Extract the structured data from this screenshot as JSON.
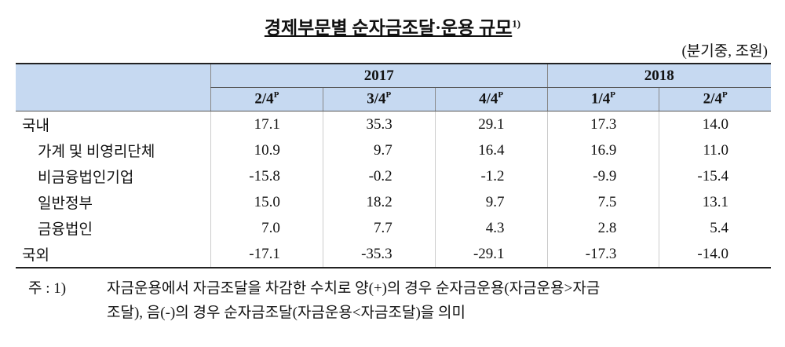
{
  "title": "경제부문별 순자금조달·운용 규모",
  "title_note": "1)",
  "unit": "(분기중, 조원)",
  "header": {
    "years": [
      {
        "label": "2017",
        "span": 3
      },
      {
        "label": "2018",
        "span": 2
      }
    ],
    "quarters": [
      {
        "label": "2/4",
        "mark": "P"
      },
      {
        "label": "3/4",
        "mark": "P"
      },
      {
        "label": "4/4",
        "mark": "P"
      },
      {
        "label": "1/4",
        "mark": "P"
      },
      {
        "label": "2/4",
        "mark": "P"
      }
    ]
  },
  "rows": [
    {
      "label": "국내",
      "level": 0,
      "values": [
        "17.1",
        "35.3",
        "29.1",
        "17.3",
        "14.0"
      ]
    },
    {
      "label": "가계 및 비영리단체",
      "level": 1,
      "values": [
        "10.9",
        "9.7",
        "16.4",
        "16.9",
        "11.0"
      ]
    },
    {
      "label": "비금융법인기업",
      "level": 1,
      "values": [
        "-15.8",
        "-0.2",
        "-1.2",
        "-9.9",
        "-15.4"
      ]
    },
    {
      "label": "일반정부",
      "level": 1,
      "values": [
        "15.0",
        "18.2",
        "9.7",
        "7.5",
        "13.1"
      ]
    },
    {
      "label": "금융법인",
      "level": 1,
      "values": [
        "7.0",
        "7.7",
        "4.3",
        "2.8",
        "5.4"
      ]
    },
    {
      "label": "국외",
      "level": 0,
      "values": [
        "-17.1",
        "-35.3",
        "-29.1",
        "-17.3",
        "-14.0"
      ]
    }
  ],
  "footnote": {
    "marker": "주 : 1)",
    "lines": [
      "자금운용에서 자금조달을 차감한 수치로 양(+)의 경우 순자금운용(자금운용>자금",
      "조달), 음(-)의 경우 순자금조달(자금운용<자금조달)을 의미"
    ]
  }
}
